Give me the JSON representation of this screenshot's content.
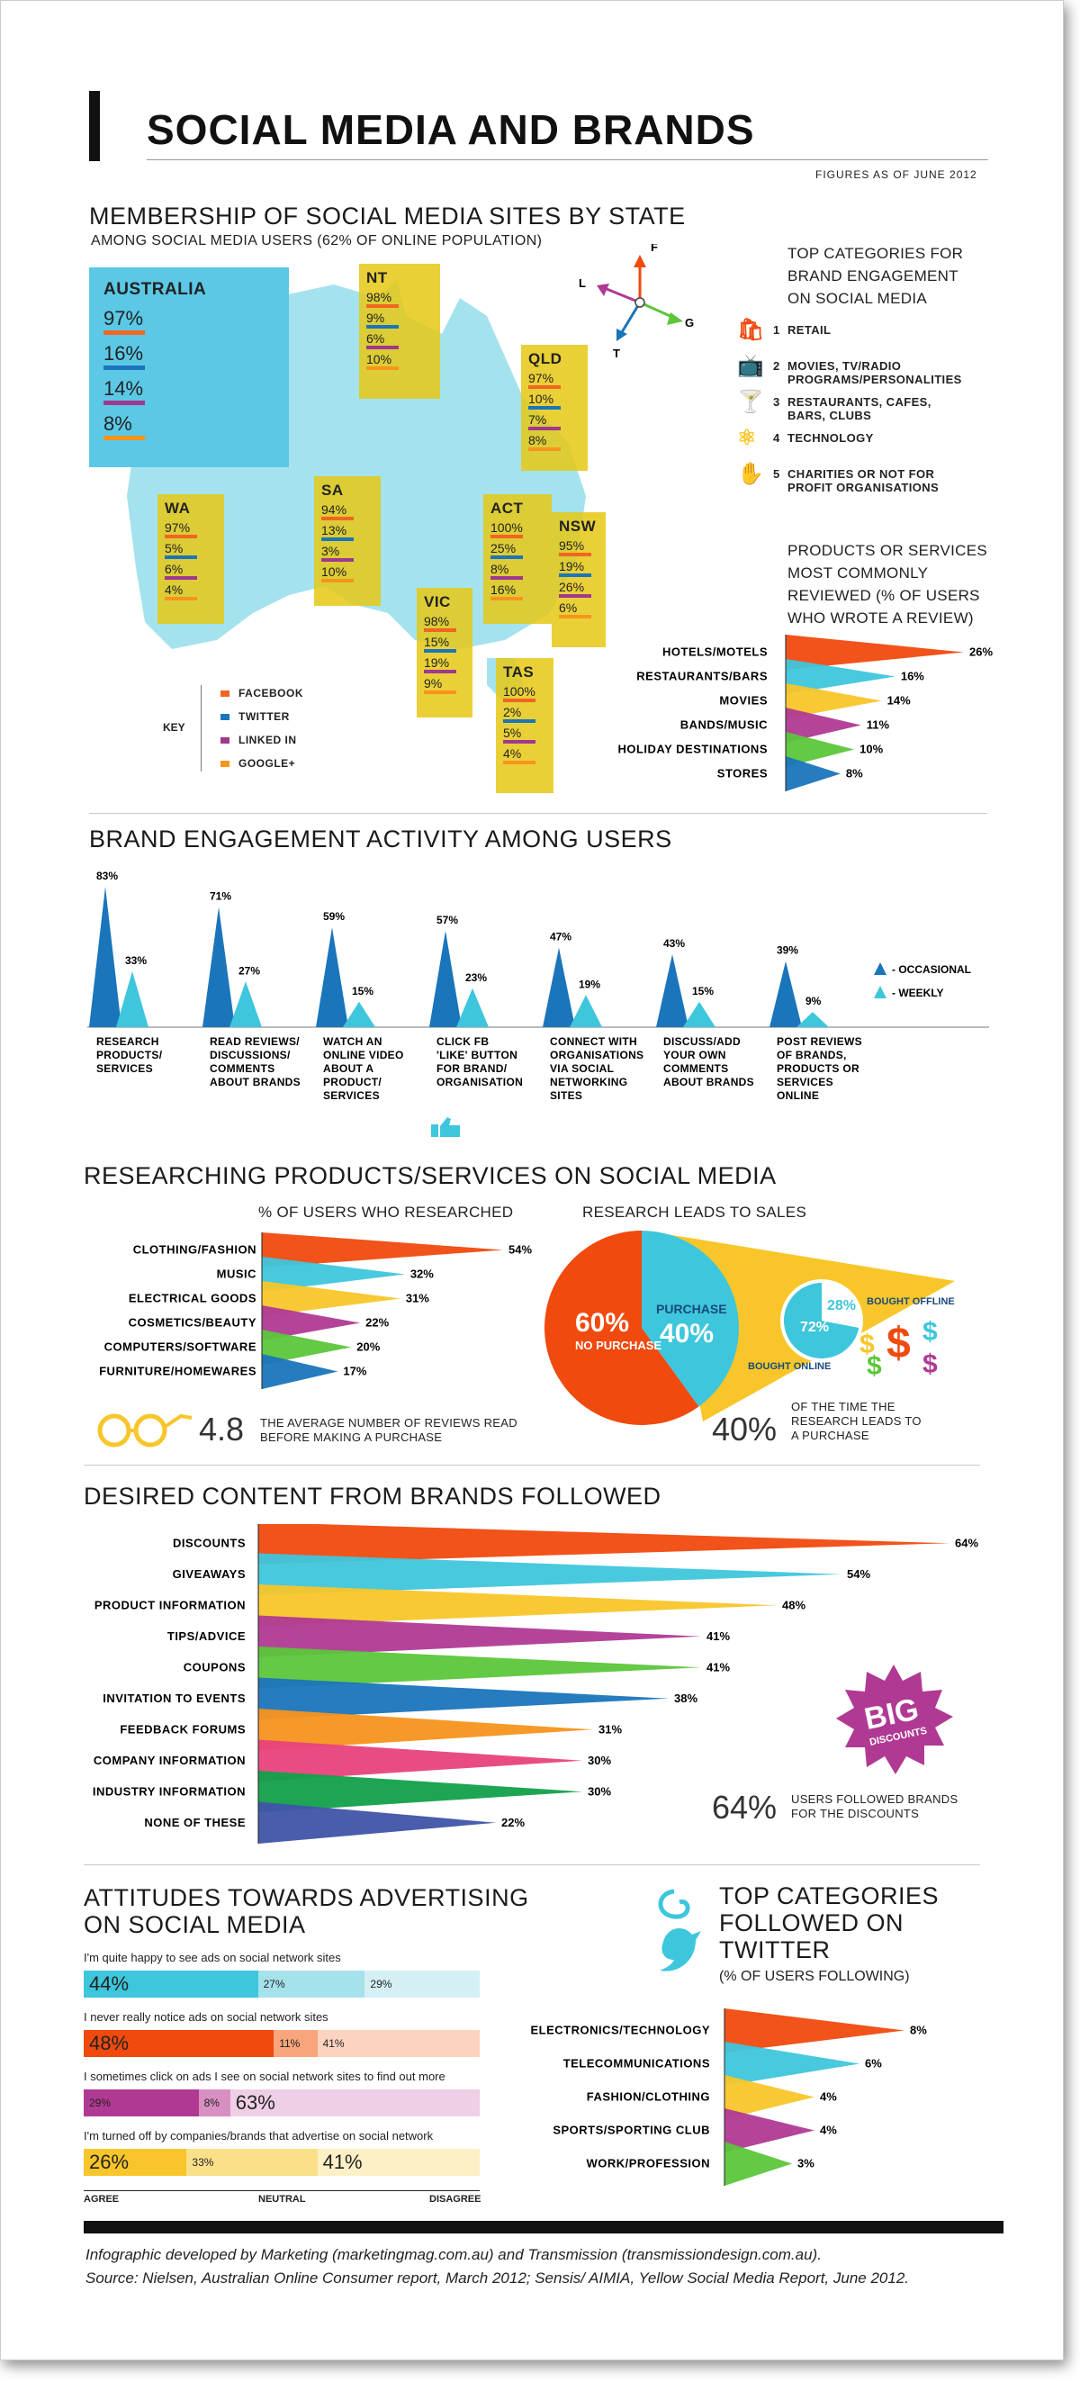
{
  "header": {
    "title": "SOCIAL MEDIA AND BRANDS",
    "figures_note": "FIGURES AS OF JUNE 2012"
  },
  "membership": {
    "title": "MEMBERSHIP OF SOCIAL MEDIA SITES BY STATE",
    "subtitle": "AMONG SOCIAL MEDIA USERS (62% OF ONLINE POPULATION)",
    "australia": {
      "name": "AUSTRALIA",
      "values": [
        "97%",
        "16%",
        "14%",
        "8%"
      ]
    },
    "states": [
      {
        "name": "NT",
        "values": [
          "98%",
          "9%",
          "6%",
          "10%"
        ]
      },
      {
        "name": "QLD",
        "values": [
          "97%",
          "10%",
          "7%",
          "8%"
        ]
      },
      {
        "name": "WA",
        "values": [
          "97%",
          "5%",
          "6%",
          "4%"
        ]
      },
      {
        "name": "SA",
        "values": [
          "94%",
          "13%",
          "3%",
          "10%"
        ]
      },
      {
        "name": "ACT",
        "values": [
          "100%",
          "25%",
          "8%",
          "16%"
        ]
      },
      {
        "name": "NSW",
        "values": [
          "95%",
          "19%",
          "26%",
          "6%"
        ]
      },
      {
        "name": "VIC",
        "values": [
          "98%",
          "15%",
          "19%",
          "9%"
        ]
      },
      {
        "name": "TAS",
        "values": [
          "100%",
          "2%",
          "5%",
          "4%"
        ]
      }
    ],
    "key_title": "KEY",
    "key_items": [
      "FACEBOOK",
      "TWITTER",
      "LINKED IN",
      "GOOGLE+"
    ],
    "key_colors": [
      "#f26522",
      "#1a75bb",
      "#a0388e",
      "#f7941d"
    ],
    "compass": {
      "f": "F",
      "l": "L",
      "g": "G",
      "t": "T"
    }
  },
  "top_categories": {
    "title": "TOP CATEGORIES FOR BRAND ENGAGEMENT ON SOCIAL MEDIA",
    "items": [
      {
        "num": "1",
        "label": "RETAIL",
        "icon": "shopping-bag-icon"
      },
      {
        "num": "2",
        "label": "MOVIES, TV/RADIO PROGRAMS/PERSONALITIES",
        "icon": "tv-icon"
      },
      {
        "num": "3",
        "label": "RESTAURANTS, CAFES, BARS, CLUBS",
        "icon": "glass-cup-icon"
      },
      {
        "num": "4",
        "label": "TECHNOLOGY",
        "icon": "atom-icon"
      },
      {
        "num": "5",
        "label": "CHARITIES OR NOT FOR PROFIT ORGANISATIONS",
        "icon": "hand-coin-icon"
      }
    ]
  },
  "reviewed": {
    "title": "PRODUCTS OR SERVICES MOST COMMONLY REVIEWED (% OF USERS WHO WROTE A REVIEW)"
  },
  "engagement": {
    "title": "BRAND ENGAGEMENT ACTIVITY AMONG USERS",
    "legend": [
      "- OCCASIONAL",
      "- WEEKLY"
    ]
  },
  "researching": {
    "title": "RESEARCHING PRODUCTS/SERVICES ON SOCIAL MEDIA",
    "left_title": "% OF USERS WHO RESEARCHED",
    "right_title": "RESEARCH LEADS TO SALES",
    "reviews_value": "4.8",
    "reviews_text": "THE AVERAGE NUMBER OF REVIEWS READ BEFORE MAKING A PURCHASE",
    "pie": {
      "no_purchase_pct": "60%",
      "no_purchase_label": "NO PURCHASE",
      "purchase_label": "PURCHASE",
      "purchase_pct": "40%",
      "online_label": "BOUGHT ONLINE",
      "online_pct": "72%",
      "offline_label": "BOUGHT OFFLINE",
      "offline_pct": "28%"
    },
    "leads_value": "40%",
    "leads_text": "OF THE TIME THE RESEARCH LEADS TO A PURCHASE"
  },
  "desired": {
    "title": "DESIRED CONTENT FROM BRANDS FOLLOWED",
    "big_top": "BIG",
    "big_bottom": "DISCOUNTS",
    "stat_value": "64%",
    "stat_text": "USERS FOLLOWED BRANDS FOR THE DISCOUNTS"
  },
  "attitudes": {
    "title_line1": "ATTITUDES TOWARDS ADVERTISING",
    "title_line2": "ON SOCIAL MEDIA",
    "rows": [
      {
        "statement": "I'm quite happy to see ads on social network sites",
        "values": [
          "44%",
          "27%",
          "29%"
        ],
        "fractions": [
          0.44,
          0.27,
          0.29
        ],
        "colors": [
          "#3ec6dc",
          "#a6e2ec",
          "#d4f0f5"
        ]
      },
      {
        "statement": "I never really notice ads on social network sites",
        "values": [
          "48%",
          "11%",
          "41%"
        ],
        "fractions": [
          0.48,
          0.11,
          0.41
        ],
        "colors": [
          "#f04a0f",
          "#f8a57c",
          "#fcd3bf"
        ]
      },
      {
        "statement": "I sometimes click on ads I see on social network sites to find out more",
        "values": [
          "29%",
          "8%",
          "63%"
        ],
        "fractions": [
          0.29,
          0.08,
          0.63
        ],
        "colors": [
          "#b03a93",
          "#d88fc2",
          "#efcfe5"
        ]
      },
      {
        "statement": "I'm turned off by companies/brands that advertise on social network",
        "values": [
          "26%",
          "33%",
          "41%"
        ],
        "fractions": [
          0.26,
          0.33,
          0.41
        ],
        "colors": [
          "#f8c62a",
          "#fbe08a",
          "#fdf0c6"
        ]
      }
    ],
    "scale": [
      "AGREE",
      "NEUTRAL",
      "DISAGREE"
    ]
  },
  "twitter": {
    "title_line1": "TOP CATEGORIES",
    "title_line2": "FOLLOWED ON",
    "title_line3": "TWITTER",
    "subtitle": "(% OF USERS FOLLOWING)"
  },
  "footer": {
    "line1": "Infographic developed by Marketing (marketingmag.com.au) and Transmission (transmissiondesign.com.au).",
    "line2": "Source: Nielsen, Australian Online Consumer report, March 2012; Sensis/ AIMIA, Yellow Social Media Report, June 2012."
  },
  "chart_data": [
    {
      "type": "bar",
      "title": "PRODUCTS OR SERVICES MOST COMMONLY REVIEWED (% OF USERS WHO WROTE A REVIEW)",
      "categories": [
        "HOTELS/MOTELS",
        "RESTAURANTS/BARS",
        "MOVIES",
        "BANDS/MUSIC",
        "HOLIDAY DESTINATIONS",
        "STORES"
      ],
      "values": [
        26,
        16,
        14,
        11,
        10,
        8
      ],
      "labels": [
        "26%",
        "16%",
        "14%",
        "11%",
        "10%",
        "8%"
      ],
      "colors": [
        "#f04a0f",
        "#3ec6dc",
        "#f8c62a",
        "#b03a93",
        "#5cc63b",
        "#1a75bb"
      ],
      "xlim": [
        0,
        26
      ]
    },
    {
      "type": "bar",
      "title": "BRAND ENGAGEMENT ACTIVITY AMONG USERS",
      "categories": [
        "RESEARCH PRODUCTS/ SERVICES",
        "READ REVIEWS/ DISCUSSIONS/ COMMENTS ABOUT BRANDS",
        "WATCH AN ONLINE VIDEO ABOUT A PRODUCT/ SERVICES",
        "CLICK FB 'LIKE' BUTTON FOR BRAND/ ORGANISATION",
        "CONNECT WITH ORGANISATIONS VIA SOCIAL NETWORKING SITES",
        "DISCUSS/ADD YOUR OWN COMMENTS ABOUT BRANDS",
        "POST REVIEWS OF BRANDS, PRODUCTS OR SERVICES ONLINE"
      ],
      "series": [
        {
          "name": "OCCASIONAL",
          "values": [
            83,
            71,
            59,
            57,
            47,
            43,
            39
          ],
          "labels": [
            "83%",
            "71%",
            "59%",
            "57%",
            "47%",
            "43%",
            "39%"
          ],
          "color": "#1a75bb"
        },
        {
          "name": "WEEKLY",
          "values": [
            33,
            27,
            15,
            23,
            19,
            15,
            9
          ],
          "labels": [
            "33%",
            "27%",
            "15%",
            "23%",
            "19%",
            "15%",
            "9%"
          ],
          "color": "#3ec6dc"
        }
      ],
      "ylim": [
        0,
        83
      ]
    },
    {
      "type": "bar",
      "title": "% OF USERS WHO RESEARCHED",
      "categories": [
        "CLOTHING/FASHION",
        "MUSIC",
        "ELECTRICAL GOODS",
        "COSMETICS/BEAUTY",
        "COMPUTERS/SOFTWARE",
        "FURNITURE/HOMEWARES"
      ],
      "values": [
        54,
        32,
        31,
        22,
        20,
        17
      ],
      "labels": [
        "54%",
        "32%",
        "31%",
        "22%",
        "20%",
        "17%"
      ],
      "colors": [
        "#f04a0f",
        "#3ec6dc",
        "#f8c62a",
        "#b03a93",
        "#5cc63b",
        "#1a75bb"
      ],
      "xlim": [
        0,
        54
      ]
    },
    {
      "type": "pie",
      "title": "RESEARCH LEADS TO SALES",
      "categories": [
        "NO PURCHASE",
        "PURCHASE"
      ],
      "values": [
        60,
        40
      ],
      "sub_pie": {
        "categories": [
          "BOUGHT ONLINE",
          "BOUGHT OFFLINE"
        ],
        "values": [
          72,
          28
        ]
      }
    },
    {
      "type": "bar",
      "title": "DESIRED CONTENT FROM BRANDS FOLLOWED",
      "categories": [
        "DISCOUNTS",
        "GIVEAWAYS",
        "PRODUCT INFORMATION",
        "TIPS/ADVICE",
        "COUPONS",
        "INVITATION TO EVENTS",
        "FEEDBACK FORUMS",
        "COMPANY INFORMATION",
        "INDUSTRY INFORMATION",
        "NONE OF THESE"
      ],
      "values": [
        64,
        54,
        48,
        41,
        41,
        38,
        31,
        30,
        30,
        22
      ],
      "labels": [
        "64%",
        "54%",
        "48%",
        "41%",
        "41%",
        "38%",
        "31%",
        "30%",
        "30%",
        "22%"
      ],
      "colors": [
        "#f04a0f",
        "#3ec6dc",
        "#f8c62a",
        "#b03a93",
        "#5cc63b",
        "#1a75bb",
        "#f7941d",
        "#e8427c",
        "#12a04b",
        "#4054a8"
      ],
      "xlim": [
        0,
        64
      ]
    },
    {
      "type": "bar",
      "title": "TOP CATEGORIES FOLLOWED ON TWITTER (% OF USERS FOLLOWING)",
      "categories": [
        "ELECTRONICS/TECHNOLOGY",
        "TELECOMMUNICATIONS",
        "FASHION/CLOTHING",
        "SPORTS/SPORTING CLUB",
        "WORK/PROFESSION"
      ],
      "values": [
        8,
        6,
        4,
        4,
        3
      ],
      "labels": [
        "8%",
        "6%",
        "4%",
        "4%",
        "3%"
      ],
      "colors": [
        "#f04a0f",
        "#3ec6dc",
        "#f8c62a",
        "#b03a93",
        "#5cc63b"
      ],
      "xlim": [
        0,
        8
      ]
    }
  ]
}
